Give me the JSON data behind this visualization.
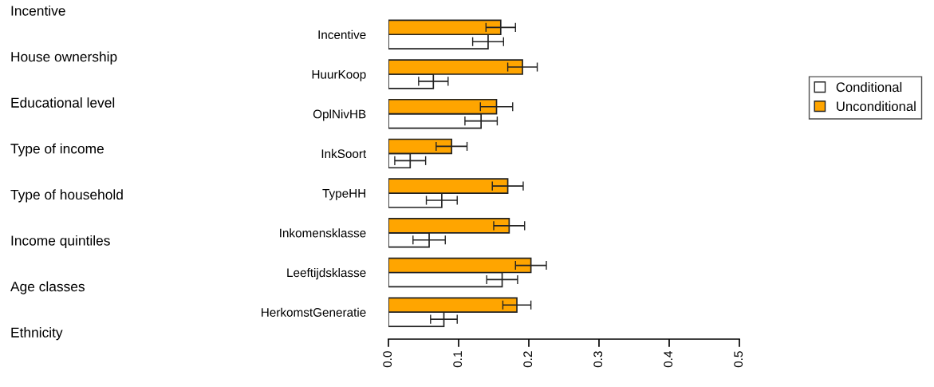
{
  "chart_data": {
    "type": "bar",
    "orientation": "horizontal",
    "categories": [
      "Incentive",
      "HuurKoop",
      "OplNivHB",
      "InkSoort",
      "TypeHH",
      "Inkomensklasse",
      "Leeftijdsklasse",
      "HerkomstGeneratie"
    ],
    "series": [
      {
        "name": "Conditional",
        "color": "#ffffff",
        "values": [
          0.142,
          0.064,
          0.132,
          0.031,
          0.076,
          0.058,
          0.162,
          0.079
        ],
        "errors": [
          0.022,
          0.021,
          0.023,
          0.022,
          0.022,
          0.023,
          0.022,
          0.019
        ]
      },
      {
        "name": "Unconditional",
        "color": "#ffa500",
        "values": [
          0.16,
          0.191,
          0.154,
          0.09,
          0.17,
          0.172,
          0.203,
          0.183
        ],
        "errors": [
          0.021,
          0.021,
          0.023,
          0.022,
          0.022,
          0.022,
          0.022,
          0.02
        ]
      }
    ],
    "xlim": [
      0,
      0.5
    ],
    "xticks": [
      {
        "value": 0,
        "label": "0.0"
      },
      0.1,
      0.2,
      0.3,
      0.4,
      0.5
    ],
    "grid": false,
    "legend": "right",
    "annotations": [
      "Incentive",
      "House ownership",
      "Educational level",
      "Type of income",
      "Type of household",
      "Income quintiles",
      "Age classes",
      "Ethnicity"
    ]
  }
}
